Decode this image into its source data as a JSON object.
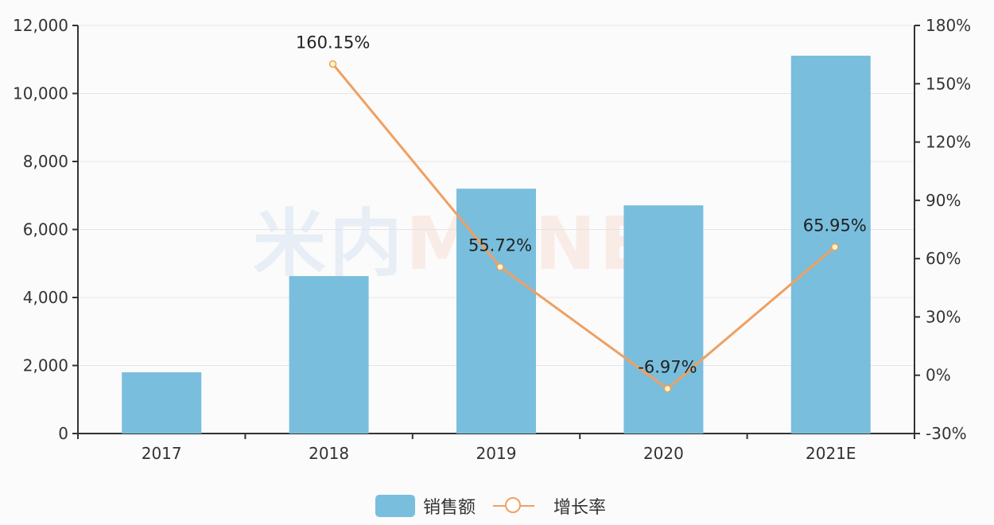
{
  "chart_data": {
    "type": "bar",
    "title": "",
    "categories": [
      "2017",
      "2018",
      "2019",
      "2020",
      "2021E"
    ],
    "series": [
      {
        "name": "销售额",
        "type": "bar",
        "axis": "left",
        "color": "#79bedd",
        "values": [
          1800,
          4630,
          7200,
          6710,
          11110
        ]
      },
      {
        "name": "增长率",
        "type": "line",
        "axis": "right",
        "color": "#f0a060",
        "values": [
          null,
          160.15,
          55.72,
          -6.97,
          65.95
        ],
        "labels": [
          "",
          "160.15%",
          "55.72%",
          "-6.97%",
          "65.95%"
        ]
      }
    ],
    "left_axis": {
      "ylim": [
        0,
        12000
      ],
      "ticks": [
        "0",
        "2,000",
        "4,000",
        "6,000",
        "8,000",
        "10,000",
        "12,000"
      ]
    },
    "right_axis": {
      "ylim": [
        -30,
        180
      ],
      "ticks": [
        "-30%",
        "0%",
        "30%",
        "60%",
        "90%",
        "120%",
        "150%",
        "180%"
      ]
    },
    "grid": true,
    "legend_position": "bottom"
  },
  "legend": {
    "bar": "销售额",
    "line": "增长率"
  },
  "watermark": {
    "left": "米内",
    "right": "MENET"
  }
}
